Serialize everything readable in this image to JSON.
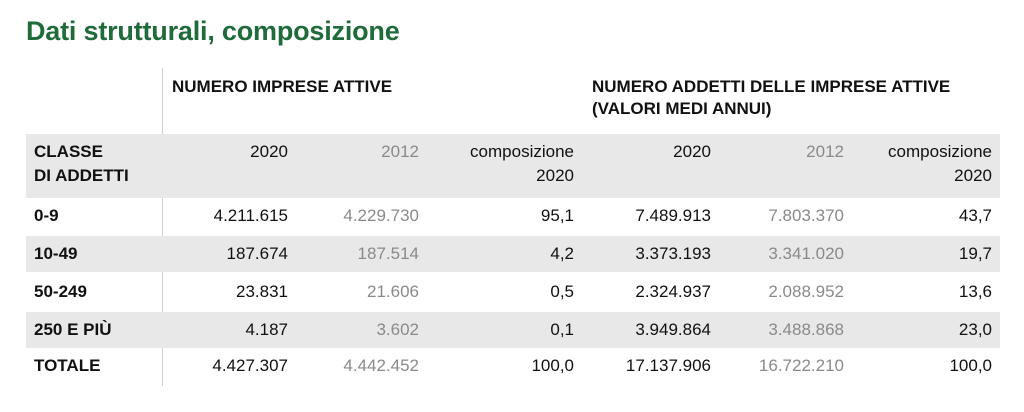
{
  "title": "Dati strutturali, composizione",
  "groups": {
    "imprese": "NUMERO IMPRESE ATTIVE",
    "addetti_line1": "NUMERO ADDETTI DELLE IMPRESE ATTIVE",
    "addetti_line2": "(VALORI MEDI ANNUI)"
  },
  "header": {
    "classe_line1": "CLASSE",
    "classe_line2": "DI ADDETTI",
    "y2020": "2020",
    "y2012": "2012",
    "comp_line1": "composizione",
    "comp_line2": "2020"
  },
  "rows": [
    {
      "label": "0-9",
      "imp2020": "4.211.615",
      "imp2012": "4.229.730",
      "impComp": "95,1",
      "add2020": "7.489.913",
      "add2012": "7.803.370",
      "addComp": "43,7"
    },
    {
      "label": "10-49",
      "imp2020": "187.674",
      "imp2012": "187.514",
      "impComp": "4,2",
      "add2020": "3.373.193",
      "add2012": "3.341.020",
      "addComp": "19,7"
    },
    {
      "label": "50-249",
      "imp2020": "23.831",
      "imp2012": "21.606",
      "impComp": "0,5",
      "add2020": "2.324.937",
      "add2012": "2.088.952",
      "addComp": "13,6"
    },
    {
      "label": "250 E PIÙ",
      "imp2020": "4.187",
      "imp2012": "3.602",
      "impComp": "0,1",
      "add2020": "3.949.864",
      "add2012": "3.488.868",
      "addComp": "23,0"
    },
    {
      "label": "TOTALE",
      "imp2020": "4.427.307",
      "imp2012": "4.442.452",
      "impComp": "100,0",
      "add2020": "17.137.906",
      "add2012": "16.722.210",
      "addComp": "100,0"
    }
  ]
}
